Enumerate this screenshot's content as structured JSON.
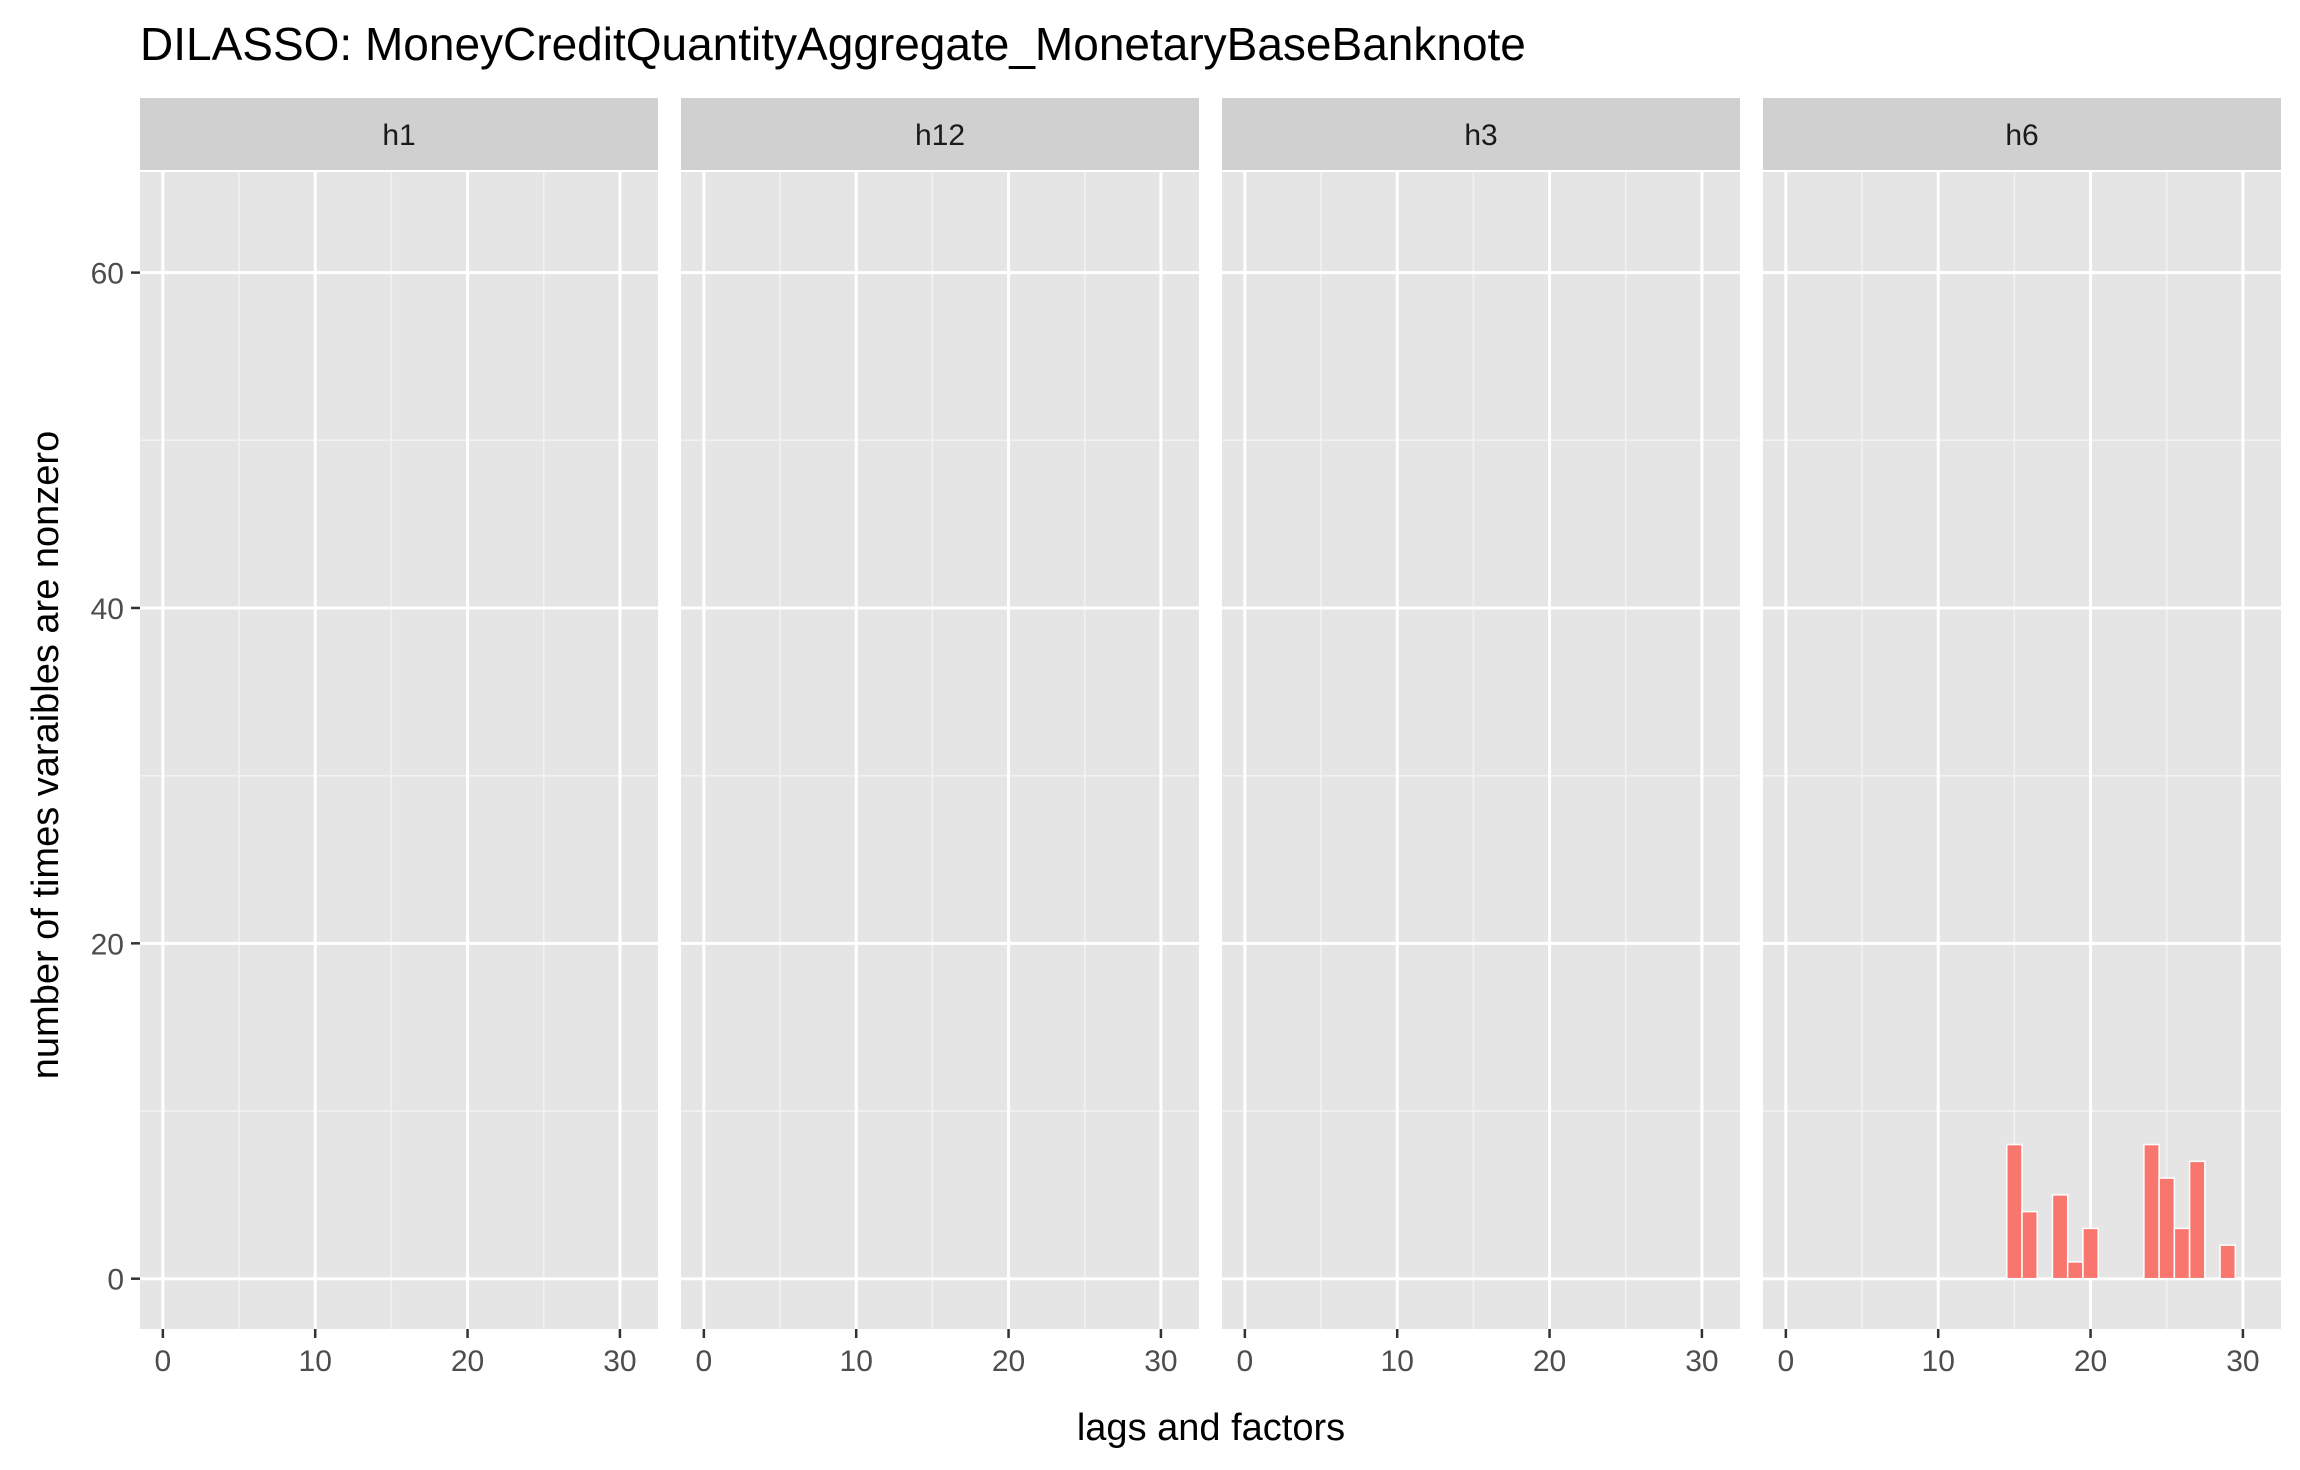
{
  "chart_data": {
    "type": "bar",
    "title": "DILASSO: MoneyCreditQuantityAggregate_MonetaryBaseBanknote",
    "xlabel": "lags and factors",
    "ylabel": "number of times varaibles are nonzero",
    "xlim": [
      -1.5,
      32.5
    ],
    "ylim": [
      -3,
      66
    ],
    "x_ticks": [
      0,
      10,
      20,
      30
    ],
    "x_tick_labels": [
      "0",
      "10",
      "20",
      "30"
    ],
    "y_ticks": [
      0,
      20,
      40,
      60
    ],
    "y_tick_labels": [
      "0",
      "20",
      "40",
      "60"
    ],
    "x_minor": [
      5,
      15,
      25
    ],
    "y_minor": [
      10,
      30,
      50
    ],
    "bar_color": "#F8766D",
    "panel_bg": "#E5E5E5",
    "strip_bg": "#D0D0D0",
    "grid": true,
    "facets": [
      {
        "label": "h1",
        "bars": []
      },
      {
        "label": "h12",
        "bars": []
      },
      {
        "label": "h3",
        "bars": []
      },
      {
        "label": "h6",
        "bars": [
          {
            "x": 15,
            "value": 8
          },
          {
            "x": 16,
            "value": 4
          },
          {
            "x": 18,
            "value": 5
          },
          {
            "x": 19,
            "value": 1
          },
          {
            "x": 20,
            "value": 3
          },
          {
            "x": 24,
            "value": 8
          },
          {
            "x": 25,
            "value": 6
          },
          {
            "x": 26,
            "value": 3
          },
          {
            "x": 27,
            "value": 7
          },
          {
            "x": 29,
            "value": 2
          }
        ]
      }
    ]
  }
}
